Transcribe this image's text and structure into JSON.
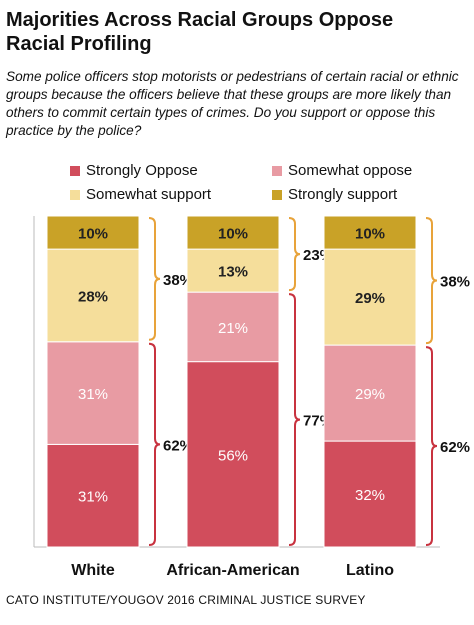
{
  "title": "Majorities Across Racial Groups Oppose Racial Profiling",
  "title_lines": [
    "Majorities Across Racial Groups Oppose",
    "Racial Profiling"
  ],
  "question": "Some police officers stop motorists or pedestrians of certain racial or ethnic groups because the officers believe that these groups are more likely than others to commit certain types of crimes. Do you support or oppose this practice by the police?",
  "legend": [
    {
      "label": "Strongly Oppose",
      "color": "#d14d5c"
    },
    {
      "label": "Somewhat oppose",
      "color": "#e89ba3"
    },
    {
      "label": "Somewhat support",
      "color": "#f5de9b"
    },
    {
      "label": "Strongly support",
      "color": "#c9a227"
    }
  ],
  "source": "CATO INSTITUTE/YOUGOV 2016 CRIMINAL JUSTICE SURVEY",
  "chart_data": {
    "type": "bar",
    "stacked": true,
    "categories": [
      "White",
      "African-American",
      "Latino"
    ],
    "series": [
      {
        "name": "Strongly Oppose",
        "values": [
          31,
          56,
          32
        ],
        "labels": [
          "31%",
          "56%",
          "32%"
        ],
        "color": "#d14d5c"
      },
      {
        "name": "Somewhat oppose",
        "values": [
          31,
          21,
          29
        ],
        "labels": [
          "31%",
          "21%",
          "29%"
        ],
        "color": "#e89ba3"
      },
      {
        "name": "Somewhat support",
        "values": [
          28,
          13,
          29
        ],
        "labels": [
          "28%",
          "13%",
          "29%"
        ],
        "color": "#f5de9b"
      },
      {
        "name": "Strongly support",
        "values": [
          10,
          10,
          10
        ],
        "labels": [
          "10%",
          "10%",
          "10%"
        ],
        "color": "#c9a227"
      }
    ],
    "totals": {
      "support": {
        "values": [
          38,
          23,
          38
        ],
        "labels": [
          "38%",
          "23%",
          "38%"
        ]
      },
      "oppose": {
        "values": [
          62,
          77,
          62
        ],
        "labels": [
          "62%",
          "77%",
          "62%"
        ]
      }
    },
    "ylim": [
      0,
      100
    ],
    "grid": false,
    "legend_position": "top",
    "bracket_color": "#e8a33a",
    "oppose_bracket_color": "#c8323f"
  }
}
